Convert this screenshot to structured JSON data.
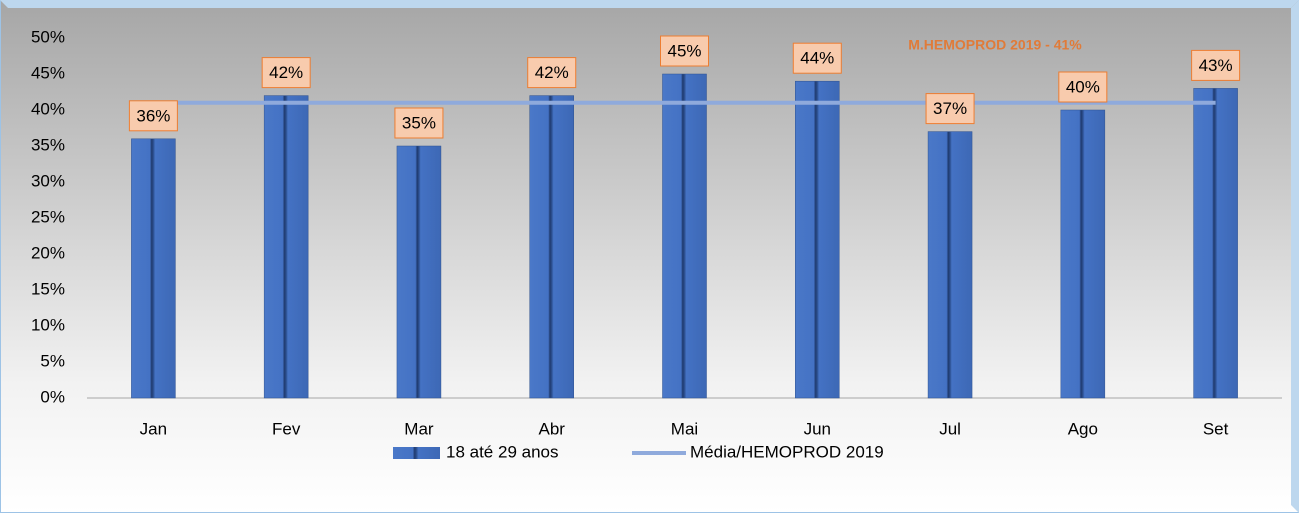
{
  "chart_data": {
    "type": "bar",
    "annotation": "M.HEMOPROD 2019 - 41%",
    "categories": [
      "Jan",
      "Fev",
      "Mar",
      "Abr",
      "Mai",
      "Jun",
      "Jul",
      "Ago",
      "Set"
    ],
    "series": [
      {
        "name": "18 até 29 anos",
        "color": "#4472c4",
        "type": "bar",
        "values": [
          36,
          42,
          35,
          42,
          45,
          44,
          37,
          40,
          43
        ],
        "value_labels": [
          "36%",
          "42%",
          "35%",
          "42%",
          "45%",
          "44%",
          "37%",
          "40%",
          "43%"
        ]
      },
      {
        "name": "Média/HEMOPROD 2019",
        "color": "#8faadc",
        "type": "line",
        "values": [
          41,
          41,
          41,
          41,
          41,
          41,
          41,
          41,
          41
        ]
      }
    ],
    "ylim": [
      0,
      50
    ],
    "yticks": [
      {
        "value": 0,
        "label": "0%"
      },
      {
        "value": 5,
        "label": "5%"
      },
      {
        "value": 10,
        "label": "10%"
      },
      {
        "value": 15,
        "label": "15%"
      },
      {
        "value": 20,
        "label": "20%"
      },
      {
        "value": 25,
        "label": "25%"
      },
      {
        "value": 30,
        "label": "30%"
      },
      {
        "value": 35,
        "label": "35%"
      },
      {
        "value": 40,
        "label": "40%"
      },
      {
        "value": 45,
        "label": "45%"
      },
      {
        "value": 50,
        "label": "50%"
      }
    ],
    "grid": false,
    "legend": "bottom"
  }
}
